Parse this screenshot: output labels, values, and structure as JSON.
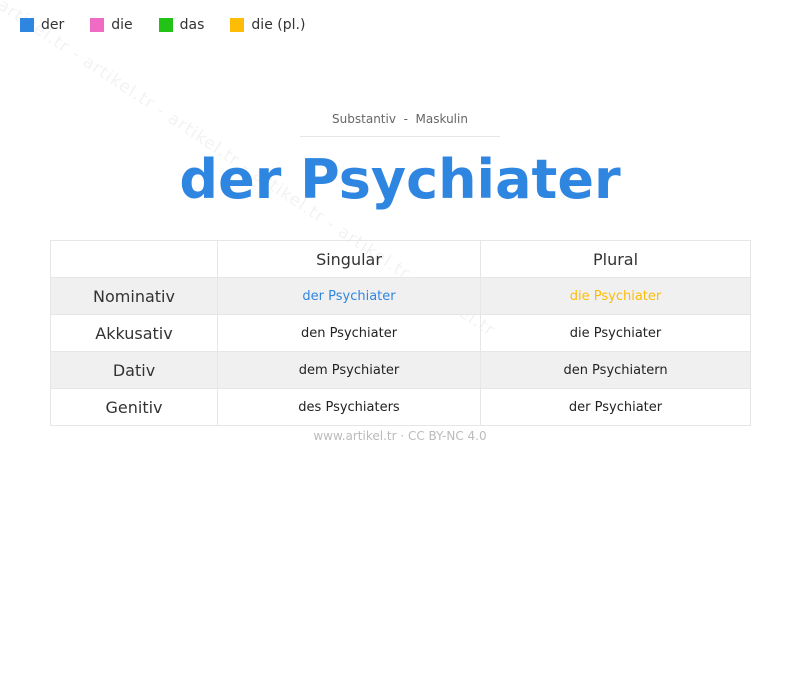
{
  "legend": [
    {
      "label": "der",
      "color": "#2f86e0"
    },
    {
      "label": "die",
      "color": "#ef6bc4"
    },
    {
      "label": "das",
      "color": "#22c316"
    },
    {
      "label": "die (pl.)",
      "color": "#fdbd06"
    }
  ],
  "watermark": "artikel.tr - artikel.tr - artikel.tr - artikel.tr - artikel.tr - artikel.tr",
  "subtitle": "Substantiv  -  Maskulin",
  "title": "der Psychiater",
  "table": {
    "headers": [
      "",
      "Singular",
      "Plural"
    ],
    "rows": [
      {
        "case": "Nominativ",
        "singular": "der Psychiater",
        "plural": "die Psychiater"
      },
      {
        "case": "Akkusativ",
        "singular": "den Psychiater",
        "plural": "die Psychiater"
      },
      {
        "case": "Dativ",
        "singular": "dem Psychiater",
        "plural": "den Psychiatern"
      },
      {
        "case": "Genitiv",
        "singular": "des Psychiaters",
        "plural": "der Psychiater"
      }
    ]
  },
  "footer": "www.artikel.tr · CC BY-NC 4.0"
}
